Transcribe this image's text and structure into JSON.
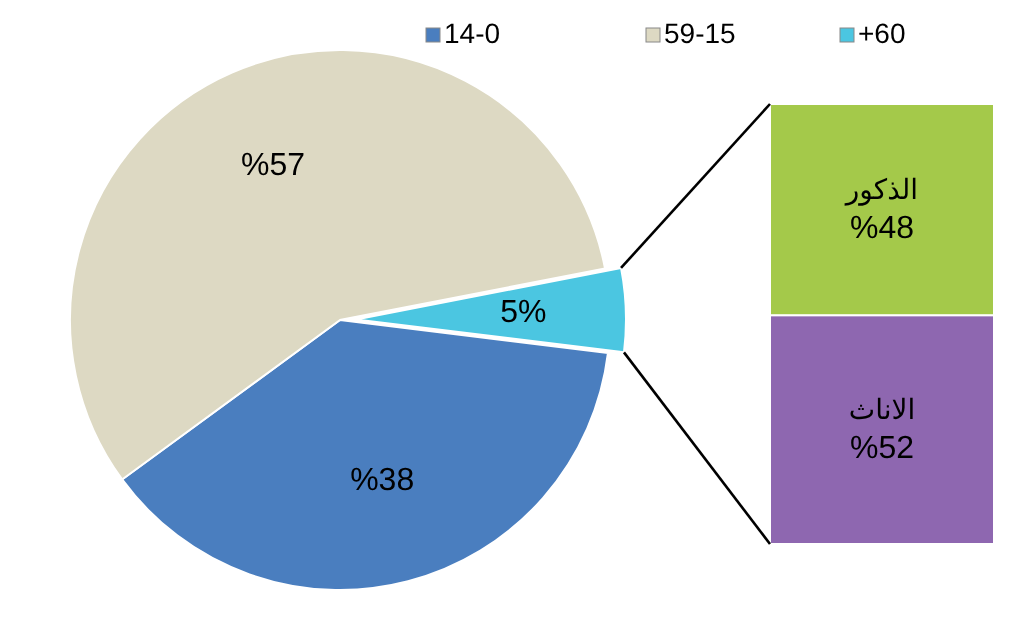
{
  "chart_data": [
    {
      "type": "pie",
      "categories": [
        "14-0",
        "59-15",
        "+60"
      ],
      "values": [
        38,
        57,
        5
      ],
      "colors": [
        "#4a7ebf",
        "#ddd9c3",
        "#4bc6e1"
      ],
      "value_labels": [
        "%38",
        "%57",
        "5%"
      ],
      "legend": "top right"
    },
    {
      "type": "bar",
      "stacked": true,
      "categories": [
        null
      ],
      "series": [
        {
          "name": "الاناث",
          "color": "#8e67b0",
          "values": [
            52
          ],
          "value_labels": [
            "%52"
          ]
        },
        {
          "name": "الذكور",
          "color": "#a4c94a",
          "values": [
            48
          ],
          "value_labels": [
            "%48"
          ]
        }
      ]
    }
  ]
}
